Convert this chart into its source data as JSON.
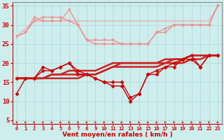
{
  "x": [
    0,
    1,
    2,
    3,
    4,
    5,
    6,
    7,
    8,
    9,
    10,
    11,
    12,
    13,
    14,
    15,
    16,
    17,
    18,
    19,
    20,
    21,
    22,
    23
  ],
  "lines": [
    {
      "y": [
        27,
        28,
        32,
        31,
        31,
        31,
        34,
        30,
        26,
        26,
        26,
        26,
        25,
        25,
        25,
        25,
        28,
        29,
        30,
        30,
        30,
        30,
        30,
        35
      ],
      "color": "#f09090",
      "marker": "v",
      "markersize": 2.5,
      "linewidth": 1.0,
      "zorder": 2
    },
    {
      "y": [
        27,
        28,
        31,
        32,
        32,
        32,
        31,
        30,
        26,
        25,
        25,
        25,
        25,
        25,
        25,
        25,
        28,
        28,
        30,
        30,
        30,
        30,
        30,
        35
      ],
      "color": "#f09090",
      "marker": "v",
      "markersize": 2.5,
      "linewidth": 1.0,
      "zorder": 2
    },
    {
      "y": [
        27,
        29,
        31,
        31,
        31,
        31,
        31,
        31,
        31,
        31,
        31,
        31,
        31,
        31,
        31,
        31,
        31,
        31,
        31,
        31,
        31,
        31,
        31,
        35
      ],
      "color": "#e8b0b0",
      "marker": null,
      "markersize": 0,
      "linewidth": 1.0,
      "zorder": 1
    },
    {
      "y": [
        12,
        16,
        16,
        19,
        18,
        19,
        20,
        17,
        17,
        16,
        15,
        14,
        14,
        10,
        12,
        17,
        18,
        19,
        19,
        21,
        22,
        19,
        22,
        22
      ],
      "color": "#cc0000",
      "marker": "D",
      "markersize": 2.5,
      "linewidth": 1.0,
      "zorder": 4
    },
    {
      "y": [
        16,
        16,
        16,
        16,
        16,
        16,
        16,
        16,
        17,
        17,
        18,
        19,
        19,
        19,
        19,
        19,
        19,
        20,
        20,
        20,
        21,
        21,
        22,
        22
      ],
      "color": "#cc2222",
      "marker": null,
      "markersize": 0,
      "linewidth": 1.8,
      "zorder": 3
    },
    {
      "y": [
        16,
        16,
        16,
        16,
        17,
        17,
        17,
        17,
        17,
        17,
        18,
        19,
        20,
        20,
        20,
        20,
        20,
        20,
        21,
        21,
        22,
        22,
        22,
        22
      ],
      "color": "#cc2222",
      "marker": null,
      "markersize": 0,
      "linewidth": 1.8,
      "zorder": 3
    },
    {
      "y": [
        16,
        16,
        16,
        16,
        17,
        17,
        18,
        18,
        18,
        18,
        19,
        20,
        20,
        20,
        20,
        20,
        20,
        21,
        21,
        21,
        22,
        22,
        22,
        22
      ],
      "color": "#cc2222",
      "marker": null,
      "markersize": 0,
      "linewidth": 1.8,
      "zorder": 3
    },
    {
      "y": [
        16,
        16,
        16,
        18,
        18,
        19,
        20,
        18,
        17,
        16,
        15,
        15,
        15,
        11,
        12,
        17,
        17,
        19,
        20,
        21,
        21,
        19,
        22,
        22
      ],
      "color": "#cc0000",
      "marker": "D",
      "markersize": 2.5,
      "linewidth": 1.0,
      "zorder": 4
    }
  ],
  "ylim": [
    4,
    36
  ],
  "yticks": [
    5,
    10,
    15,
    20,
    25,
    30,
    35
  ],
  "xlim": [
    -0.5,
    23.5
  ],
  "xlabel": "Vent moyen/en rafales ( km/h )",
  "xlabel_color": "#cc0000",
  "background_color": "#ceeeed",
  "grid_color": "#aad8d8",
  "tick_color": "#cc0000",
  "axis_color": "#888888"
}
